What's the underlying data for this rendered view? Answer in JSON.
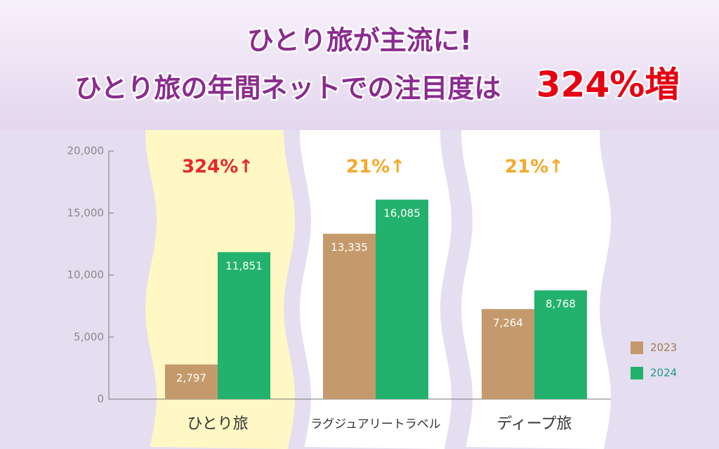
{
  "chart_data": {
    "type": "bar",
    "title": "ひとり旅が主流に!",
    "subtitle": "ひとり旅の年間ネットでの注目度は",
    "highlight": "324%増",
    "categories": [
      "ひとり旅",
      "ラグジュアリートラベル",
      "ディープ旅"
    ],
    "series": [
      {
        "name": "2023",
        "color": "#c49a6c",
        "values": [
          2797,
          13335,
          7264
        ],
        "value_labels": [
          "2,797",
          "13,335",
          "7,264"
        ]
      },
      {
        "name": "2024",
        "color": "#23b26d",
        "values": [
          11851,
          16085,
          8768
        ],
        "value_labels": [
          "11,851",
          "16,085",
          "8,768"
        ]
      }
    ],
    "annotations": [
      "324%↑",
      "21%↑",
      "21%↑"
    ],
    "annotation_colors": [
      "#e8262a",
      "#f5a82a",
      "#f5a82a"
    ],
    "ylim": [
      0,
      20000
    ],
    "yticks": [
      0,
      {
        "value": 5000,
        "label": "5,000"
      },
      {
        "value": 10000,
        "label": "10,000"
      },
      {
        "value": 15000,
        "label": "15,000"
      },
      {
        "value": 20000,
        "label": "20,000"
      }
    ],
    "legend": "right"
  }
}
